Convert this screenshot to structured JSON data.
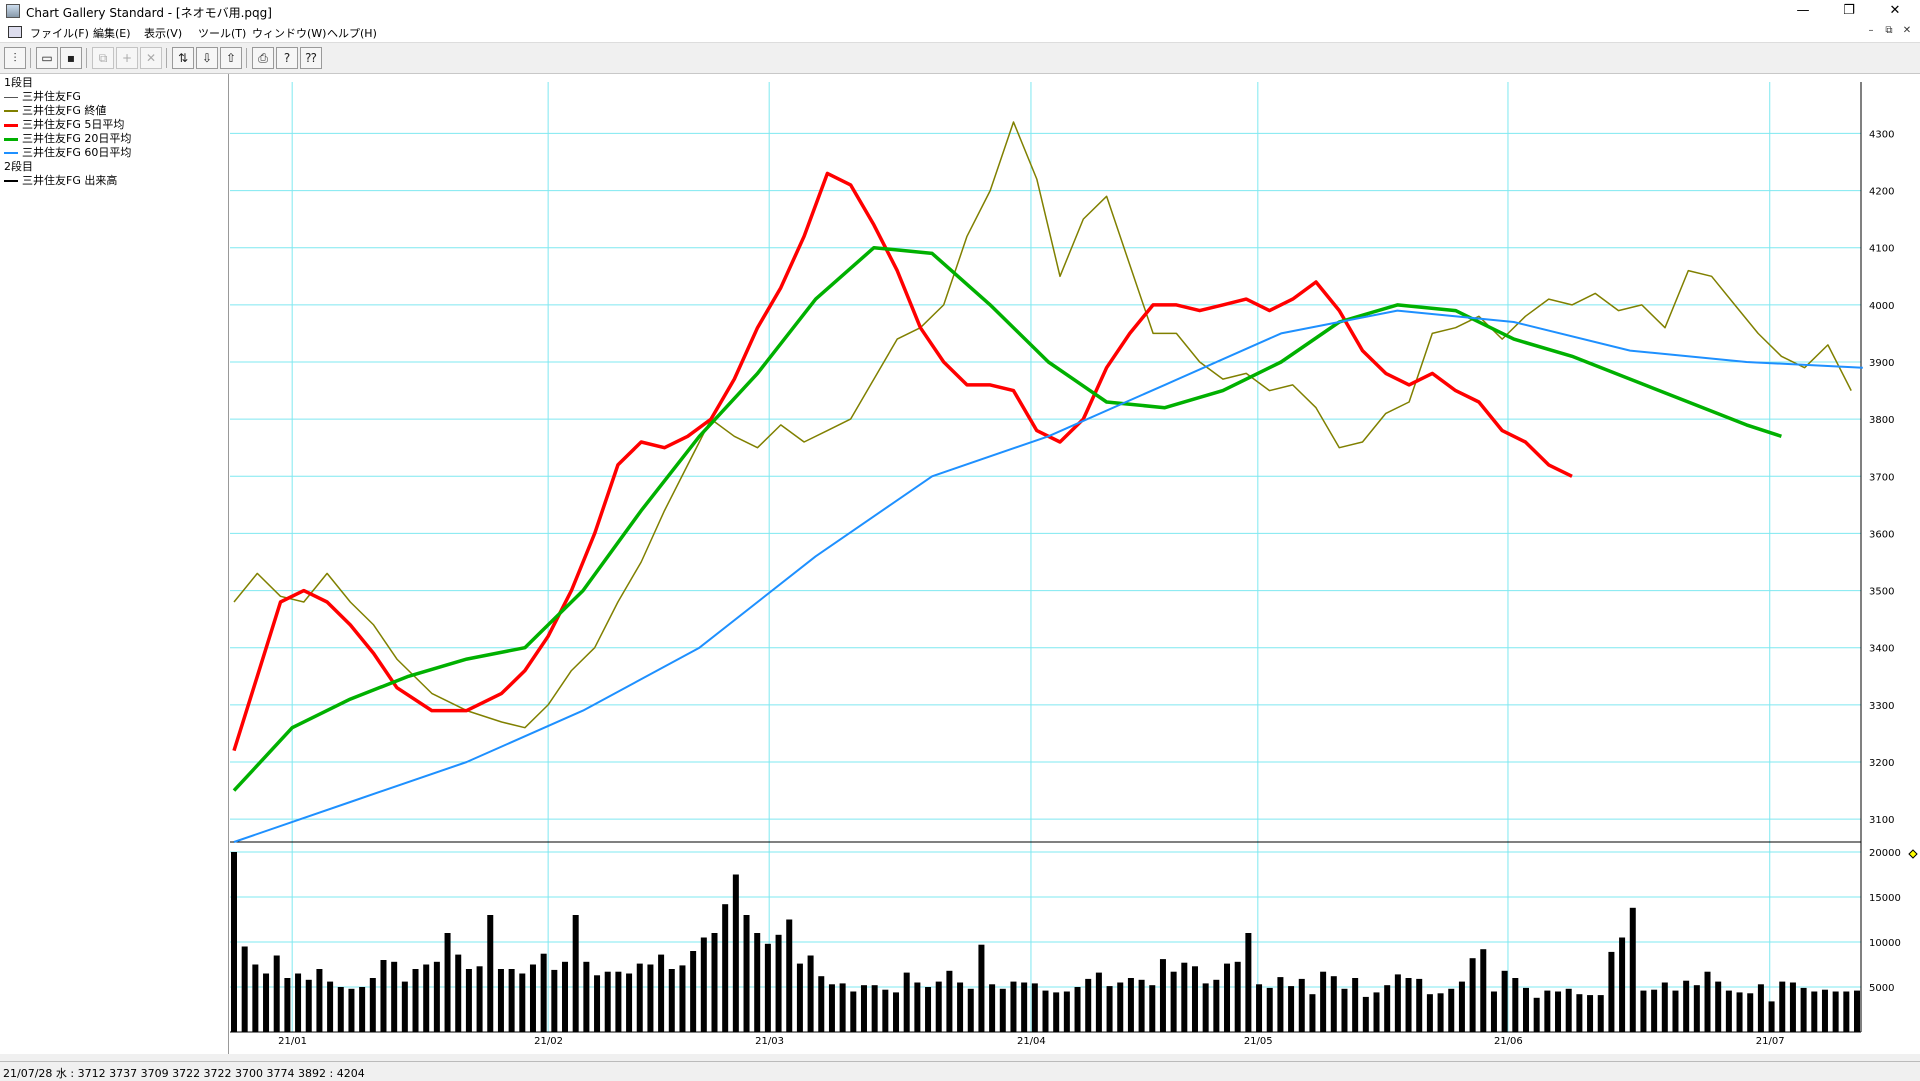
{
  "window": {
    "title": "Chart Gallery Standard - [ネオモバ用.pqg]",
    "minimize_glyph": "—",
    "restore_glyph": "❐",
    "close_glyph": "✕"
  },
  "menu": {
    "items": [
      "ファイル(F)",
      "編集(E)",
      "表示(V)",
      "ツール(T)",
      "ウィンドウ(W)",
      "ヘルプ(H)"
    ],
    "mdi_minimize": "–",
    "mdi_restore": "⧉",
    "mdi_close": "✕"
  },
  "toolbar": {
    "buttons": [
      {
        "icon": "chart-type-icon",
        "glyph": "⫶",
        "enabled": true
      },
      {
        "icon": "open-folder-icon",
        "glyph": "▭",
        "enabled": true
      },
      {
        "icon": "save-icon",
        "glyph": "▪",
        "enabled": true
      },
      {
        "icon": "copy-icon",
        "glyph": "⧉",
        "enabled": false
      },
      {
        "icon": "add-icon",
        "glyph": "+",
        "enabled": false
      },
      {
        "icon": "delete-icon",
        "glyph": "✕",
        "enabled": false
      },
      {
        "icon": "swap-icon",
        "glyph": "⇅",
        "enabled": true
      },
      {
        "icon": "download-icon",
        "glyph": "⇩",
        "enabled": true
      },
      {
        "icon": "upload-icon",
        "glyph": "⇧",
        "enabled": true
      },
      {
        "icon": "print-icon",
        "glyph": "⎙",
        "enabled": true
      },
      {
        "icon": "help-icon",
        "glyph": "?",
        "enabled": true
      },
      {
        "icon": "context-help-icon",
        "glyph": "⁇",
        "enabled": true
      }
    ]
  },
  "legend": {
    "panel1_title": "1段目",
    "panel1_items": [
      {
        "label": "三井住友FG",
        "color": "#555555"
      },
      {
        "label": "三井住友FG 終値",
        "color": "#808000"
      },
      {
        "label": "三井住友FG 5日平均",
        "color": "#ff0000"
      },
      {
        "label": "三井住友FG 20日平均",
        "color": "#00b000"
      },
      {
        "label": "三井住友FG 60日平均",
        "color": "#1e90ff"
      }
    ],
    "panel2_title": "2段目",
    "panel2_items": [
      {
        "label": "三井住友FG 出来高",
        "color": "#000000"
      }
    ]
  },
  "status": {
    "text": "21/07/28 水 : 3712 3737 3709 3722  3722 3700 3774 3892 : 4204"
  },
  "chart_data": {
    "type": "line",
    "price_axis": {
      "ticks": [
        4300,
        4200,
        4100,
        4000,
        3900,
        3800,
        3700,
        3600,
        3500,
        3400,
        3300,
        3200,
        3100
      ],
      "ylim": [
        3060,
        4390
      ]
    },
    "volume_axis": {
      "ticks": [
        20000,
        15000,
        10000,
        5000
      ],
      "ylim": [
        0,
        20000
      ]
    },
    "x_labels": [
      "21/01",
      "21/02",
      "21/03",
      "21/04",
      "21/05",
      "21/06",
      "21/07"
    ],
    "x_label_index": [
      10,
      54,
      92,
      137,
      176,
      219,
      264
    ],
    "n_days": 280,
    "series": [
      {
        "name": "三井住友FG 終値",
        "color": "#808000",
        "points": [
          [
            0,
            3480
          ],
          [
            4,
            3530
          ],
          [
            8,
            3490
          ],
          [
            12,
            3480
          ],
          [
            16,
            3530
          ],
          [
            20,
            3480
          ],
          [
            24,
            3440
          ],
          [
            28,
            3380
          ],
          [
            34,
            3320
          ],
          [
            40,
            3290
          ],
          [
            46,
            3270
          ],
          [
            50,
            3260
          ],
          [
            54,
            3300
          ],
          [
            58,
            3360
          ],
          [
            62,
            3400
          ],
          [
            66,
            3480
          ],
          [
            70,
            3550
          ],
          [
            74,
            3640
          ],
          [
            78,
            3720
          ],
          [
            82,
            3800
          ],
          [
            86,
            3770
          ],
          [
            90,
            3750
          ],
          [
            94,
            3790
          ],
          [
            98,
            3760
          ],
          [
            102,
            3780
          ],
          [
            106,
            3800
          ],
          [
            110,
            3870
          ],
          [
            114,
            3940
          ],
          [
            118,
            3960
          ],
          [
            122,
            4000
          ],
          [
            126,
            4120
          ],
          [
            130,
            4200
          ],
          [
            134,
            4320
          ],
          [
            138,
            4220
          ],
          [
            142,
            4050
          ],
          [
            146,
            4150
          ],
          [
            150,
            4190
          ],
          [
            154,
            4070
          ],
          [
            158,
            3950
          ],
          [
            162,
            3950
          ],
          [
            166,
            3900
          ],
          [
            170,
            3870
          ],
          [
            174,
            3880
          ],
          [
            178,
            3850
          ],
          [
            182,
            3860
          ],
          [
            186,
            3820
          ],
          [
            190,
            3750
          ],
          [
            194,
            3760
          ],
          [
            198,
            3810
          ],
          [
            202,
            3830
          ],
          [
            206,
            3950
          ],
          [
            210,
            3960
          ],
          [
            214,
            3980
          ],
          [
            218,
            3940
          ],
          [
            222,
            3980
          ],
          [
            226,
            4010
          ],
          [
            230,
            4000
          ],
          [
            234,
            4020
          ],
          [
            238,
            3990
          ],
          [
            242,
            4000
          ],
          [
            246,
            3960
          ],
          [
            250,
            4060
          ],
          [
            254,
            4050
          ],
          [
            258,
            4000
          ],
          [
            262,
            3950
          ],
          [
            266,
            3910
          ],
          [
            270,
            3890
          ],
          [
            274,
            3930
          ],
          [
            278,
            3850
          ]
        ]
      },
      {
        "name": "三井住友FG 5日平均",
        "color": "#ff0000",
        "points": [
          [
            0,
            3220
          ],
          [
            4,
            3350
          ],
          [
            8,
            3480
          ],
          [
            12,
            3500
          ],
          [
            16,
            3480
          ],
          [
            20,
            3440
          ],
          [
            24,
            3390
          ],
          [
            28,
            3330
          ],
          [
            34,
            3290
          ],
          [
            40,
            3290
          ],
          [
            46,
            3320
          ],
          [
            50,
            3360
          ],
          [
            54,
            3420
          ],
          [
            58,
            3500
          ],
          [
            62,
            3600
          ],
          [
            66,
            3720
          ],
          [
            70,
            3760
          ],
          [
            74,
            3750
          ],
          [
            78,
            3770
          ],
          [
            82,
            3800
          ],
          [
            86,
            3870
          ],
          [
            90,
            3960
          ],
          [
            94,
            4030
          ],
          [
            98,
            4120
          ],
          [
            102,
            4230
          ],
          [
            106,
            4210
          ],
          [
            110,
            4140
          ],
          [
            114,
            4060
          ],
          [
            118,
            3960
          ],
          [
            122,
            3900
          ],
          [
            126,
            3860
          ],
          [
            130,
            3860
          ],
          [
            134,
            3850
          ],
          [
            138,
            3780
          ],
          [
            142,
            3760
          ],
          [
            146,
            3800
          ],
          [
            150,
            3890
          ],
          [
            154,
            3950
          ],
          [
            158,
            4000
          ],
          [
            162,
            4000
          ],
          [
            166,
            3990
          ],
          [
            170,
            4000
          ],
          [
            174,
            4010
          ],
          [
            178,
            3990
          ],
          [
            182,
            4010
          ],
          [
            186,
            4040
          ],
          [
            190,
            3990
          ],
          [
            194,
            3920
          ],
          [
            198,
            3880
          ],
          [
            202,
            3860
          ],
          [
            206,
            3880
          ],
          [
            210,
            3850
          ],
          [
            214,
            3830
          ],
          [
            218,
            3780
          ],
          [
            222,
            3760
          ],
          [
            226,
            3720
          ],
          [
            230,
            3700
          ]
        ]
      },
      {
        "name": "三井住友フG 20日平均",
        "color": "#00b000",
        "points": [
          [
            0,
            3150
          ],
          [
            10,
            3260
          ],
          [
            20,
            3310
          ],
          [
            30,
            3350
          ],
          [
            40,
            3380
          ],
          [
            50,
            3400
          ],
          [
            60,
            3500
          ],
          [
            70,
            3640
          ],
          [
            80,
            3770
          ],
          [
            90,
            3880
          ],
          [
            100,
            4010
          ],
          [
            110,
            4100
          ],
          [
            120,
            4090
          ],
          [
            130,
            4000
          ],
          [
            140,
            3900
          ],
          [
            150,
            3830
          ],
          [
            160,
            3820
          ],
          [
            170,
            3850
          ],
          [
            180,
            3900
          ],
          [
            190,
            3970
          ],
          [
            200,
            4000
          ],
          [
            210,
            3990
          ],
          [
            220,
            3940
          ],
          [
            230,
            3910
          ],
          [
            240,
            3870
          ],
          [
            250,
            3830
          ],
          [
            260,
            3790
          ],
          [
            266,
            3770
          ]
        ]
      },
      {
        "name": "三井住友FG 60日平均",
        "color": "#1e90ff",
        "points": [
          [
            0,
            3060
          ],
          [
            20,
            3130
          ],
          [
            40,
            3200
          ],
          [
            60,
            3290
          ],
          [
            80,
            3400
          ],
          [
            100,
            3560
          ],
          [
            120,
            3700
          ],
          [
            140,
            3770
          ],
          [
            160,
            3860
          ],
          [
            180,
            3950
          ],
          [
            200,
            3990
          ],
          [
            220,
            3970
          ],
          [
            240,
            3920
          ],
          [
            260,
            3900
          ],
          [
            280,
            3890
          ]
        ]
      }
    ],
    "volume": [
      20000,
      9500,
      7500,
      6500,
      8500,
      6000,
      6500,
      5800,
      7000,
      5600,
      5000,
      4800,
      5000,
      6000,
      8000,
      7800,
      5600,
      7000,
      7500,
      7800,
      11000,
      8600,
      7000,
      7300,
      13000,
      7000,
      7000,
      6500,
      7500,
      8700,
      6900,
      7800,
      13000,
      7800,
      6300,
      6700,
      6700,
      6500,
      7600,
      7500,
      8600,
      7000,
      7400,
      9000,
      10500,
      11000,
      14200,
      17500,
      13000,
      11000,
      9800,
      10800,
      12500,
      7600,
      8500,
      6200,
      5300,
      5400,
      4500,
      5200,
      5200,
      4700,
      4400,
      6600,
      5500,
      5000,
      5600,
      6800,
      5500,
      4800,
      9700,
      5300,
      4800,
      5600,
      5500,
      5400,
      4600,
      4400,
      4500,
      5000,
      5900,
      6600,
      5100,
      5500,
      6000,
      5800,
      5200,
      8100,
      6700,
      7700,
      7300,
      5400,
      5800,
      7600,
      7800,
      11000,
      5300,
      4900,
      6100,
      5100,
      5900,
      4200,
      6700,
      6200,
      4800,
      6000,
      3900,
      4400,
      5200,
      6400,
      6000,
      5900,
      4200,
      4300,
      4800,
      5600,
      8200,
      9200,
      4500,
      6800,
      6000,
      4900,
      3800,
      4600,
      4500,
      4800,
      4200,
      4100,
      4100,
      8900,
      10500,
      13800,
      4600,
      4700,
      5500,
      4600,
      5700,
      5200,
      6700,
      5600,
      4600,
      4400,
      4300,
      5300,
      3400,
      5600,
      5500,
      4900,
      4500,
      4700,
      4500,
      4500,
      4600
    ]
  }
}
